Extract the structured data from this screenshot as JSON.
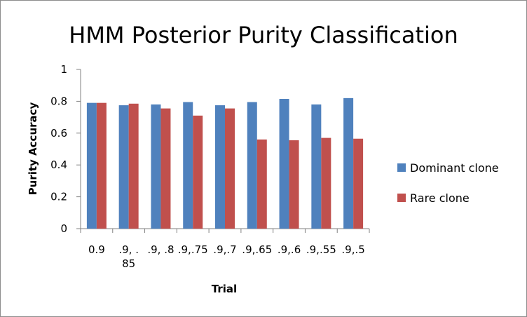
{
  "chart_data": {
    "type": "bar",
    "title": "HMM Posterior Purity Classification",
    "xlabel": "Trial",
    "ylabel": "Purity Accuracy",
    "categories": [
      [
        "0.9"
      ],
      [
        ".9, .",
        "85"
      ],
      [
        ".9, .8"
      ],
      [
        ".9,.75"
      ],
      [
        ".9,.7"
      ],
      [
        ".9,.65"
      ],
      [
        ".9,.6"
      ],
      [
        ".9,.55"
      ],
      [
        ".9,.5"
      ]
    ],
    "series": [
      {
        "name": "Dominant clone",
        "color": "#4f81bd",
        "values": [
          0.79,
          0.775,
          0.78,
          0.795,
          0.775,
          0.795,
          0.815,
          0.78,
          0.82
        ]
      },
      {
        "name": "Rare clone",
        "color": "#c0504d",
        "values": [
          0.79,
          0.785,
          0.755,
          0.71,
          0.755,
          0.56,
          0.555,
          0.57,
          0.565
        ]
      }
    ],
    "ylim": [
      0,
      1
    ],
    "yticks": [
      "0",
      "0.2",
      "0.4",
      "0.6",
      "0.8",
      "1"
    ],
    "grid": false,
    "legend": "right"
  }
}
